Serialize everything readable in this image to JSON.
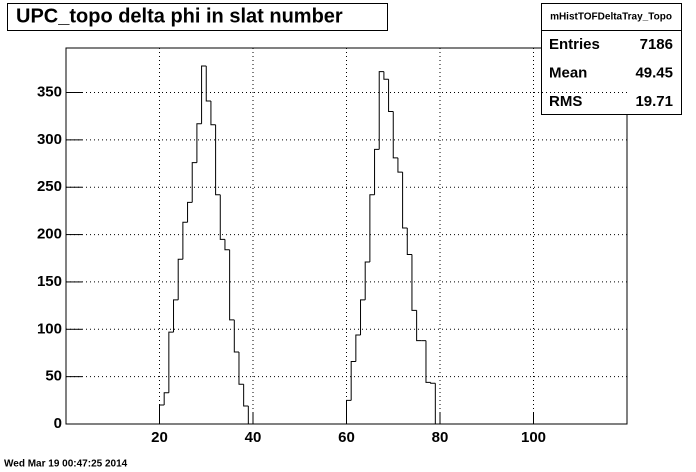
{
  "chart_data": {
    "type": "histogram",
    "title": "UPC_topo delta phi in slat number",
    "bins": [
      0,
      1,
      2,
      3,
      4,
      5,
      6,
      7,
      8,
      9,
      10,
      11,
      12,
      13,
      14,
      15,
      16,
      17,
      18,
      19,
      20,
      21,
      22,
      23,
      24,
      25,
      26,
      27,
      28,
      29,
      30,
      31,
      32,
      33,
      34,
      35,
      36,
      37,
      38,
      39,
      40,
      41,
      42,
      43,
      44,
      45,
      46,
      47,
      48,
      49,
      50,
      51,
      52,
      53,
      54,
      55,
      56,
      57,
      58,
      59,
      60,
      61,
      62,
      63,
      64,
      65,
      66,
      67,
      68,
      69,
      70,
      71,
      72,
      73,
      74,
      75,
      76,
      77,
      78,
      79,
      80,
      81,
      82,
      83,
      84,
      85,
      86,
      87,
      88,
      89,
      90,
      91,
      92,
      93,
      94,
      95,
      96,
      97,
      98,
      99,
      100,
      101,
      102,
      103,
      104,
      105,
      106,
      107,
      108,
      109,
      110,
      111,
      112,
      113,
      114,
      115,
      116,
      117,
      118,
      119,
      120
    ],
    "values": [
      0,
      0,
      0,
      0,
      0,
      0,
      0,
      0,
      0,
      0,
      0,
      0,
      0,
      0,
      0,
      0,
      0,
      0,
      0,
      0,
      20,
      33,
      97,
      131,
      174,
      213,
      234,
      276,
      317,
      378,
      341,
      316,
      242,
      195,
      184,
      110,
      76,
      42,
      19,
      0,
      0,
      0,
      0,
      0,
      0,
      0,
      0,
      0,
      0,
      0,
      0,
      0,
      0,
      0,
      0,
      0,
      0,
      0,
      0,
      0,
      25,
      66,
      94,
      131,
      171,
      242,
      290,
      372,
      364,
      330,
      281,
      266,
      207,
      179,
      120,
      88,
      88,
      44,
      43,
      0,
      0,
      0,
      0,
      0,
      0,
      0,
      0,
      0,
      0,
      0,
      0,
      0,
      0,
      0,
      0,
      0,
      0,
      0,
      0,
      0,
      0,
      0,
      0,
      0,
      0,
      0,
      0,
      0,
      0,
      0,
      0,
      0,
      0,
      0,
      0,
      0,
      0,
      0,
      0,
      0
    ],
    "color": "#000000",
    "xlim": [
      0,
      120
    ],
    "xticks": [
      20,
      40,
      60,
      80,
      100
    ],
    "ylim": [
      0,
      397
    ],
    "yticks": [
      0,
      50,
      100,
      150,
      200,
      250,
      300,
      350
    ],
    "grid": true,
    "stats": {
      "name": "mHistTOFDeltaTray_Topo",
      "rows": [
        {
          "label": "Entries",
          "value": 7186
        },
        {
          "label": "Mean",
          "value": 49.45
        },
        {
          "label": "RMS",
          "value": 19.71
        }
      ]
    },
    "timestamp": "Wed Mar 19 00:47:25 2014"
  }
}
